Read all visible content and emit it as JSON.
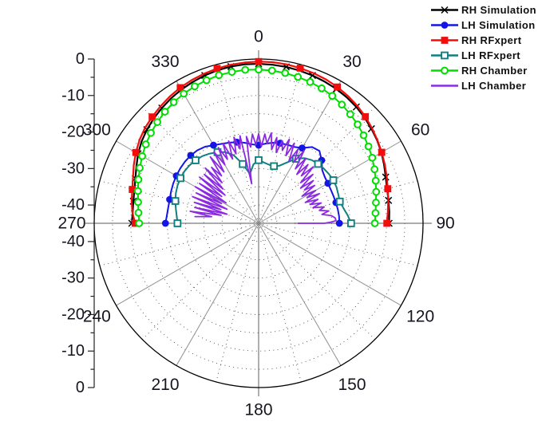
{
  "chart_data": {
    "type": "polar-line",
    "title": "",
    "legend_position": "top-right",
    "grid": {
      "angle_labels": [
        "0",
        "30",
        "60",
        "90",
        "120",
        "150",
        "180",
        "210",
        "240",
        "270",
        "300",
        "330"
      ],
      "angle_major_step_deg": 30,
      "angle_minor_step_deg": 15,
      "radial_tick_labels": [
        "0",
        "-10",
        "-20",
        "-30",
        "-40"
      ],
      "radial_axis_values": [
        0,
        -10,
        -20,
        -30,
        -40
      ],
      "radial_min_db": -45,
      "radial_max_db": 0,
      "radial_minor_step_db": 5,
      "zero_angle_position": "top",
      "angle_direction": "clockwise"
    },
    "series": [
      {
        "name": "RH Simulation",
        "color": "#000000",
        "marker": "x",
        "marker_every": 2,
        "line_width": 2.2,
        "az_start": -90,
        "az_step": 5,
        "values_db": [
          -10.3,
          -10.4,
          -10.2,
          -9.8,
          -9.1,
          -8.1,
          -6.9,
          -5.9,
          -5.1,
          -4.4,
          -3.8,
          -3.2,
          -2.7,
          -2.3,
          -1.9,
          -1.6,
          -1.4,
          -1.3,
          -1.3,
          -1.4,
          -1.5,
          -1.7,
          -1.9,
          -2.2,
          -2.5,
          -2.9,
          -3.4,
          -4.0,
          -4.7,
          -5.4,
          -6.2,
          -7.1,
          -8.0,
          -8.6,
          -8.9,
          -9.1,
          -9.3
        ]
      },
      {
        "name": "LH Simulation",
        "color": "#1414e6",
        "marker": "circle-filled",
        "marker_every": 3,
        "line_width": 2,
        "az_start": -90,
        "az_step": 5,
        "values_db": [
          -19.5,
          -19.8,
          -19.9,
          -19.8,
          -19.5,
          -19.2,
          -19.0,
          -18.8,
          -18.7,
          -18.7,
          -18.9,
          -19.4,
          -20.3,
          -21.0,
          -21.5,
          -22.0,
          -22.6,
          -23.3,
          -23.6,
          -23.1,
          -22.6,
          -22.3,
          -22.1,
          -21.9,
          -21.2,
          -19.5,
          -19.1,
          -20.6,
          -22.3,
          -22.9,
          -23.1,
          -23.2,
          -23.2,
          -23.1,
          -23.0,
          -22.9,
          -22.9
        ]
      },
      {
        "name": "RH RFxpert",
        "color": "#f20d0d",
        "marker": "square-filled",
        "marker_every": 3,
        "line_width": 2.2,
        "az_start": -90,
        "az_step": 5,
        "values_db": [
          -11.2,
          -10.3,
          -9.7,
          -9.2,
          -8.4,
          -7.3,
          -6.2,
          -5.2,
          -4.4,
          -3.8,
          -3.2,
          -2.6,
          -2.1,
          -1.7,
          -1.4,
          -1.1,
          -0.9,
          -0.8,
          -0.7,
          -0.7,
          -0.8,
          -1.0,
          -1.2,
          -1.5,
          -1.9,
          -2.4,
          -3.0,
          -3.7,
          -4.5,
          -5.3,
          -6.1,
          -6.9,
          -7.7,
          -8.4,
          -9.0,
          -9.5,
          -9.9
        ]
      },
      {
        "name": "LH RFxpert",
        "color": "#0f7f7f",
        "marker": "square-open",
        "marker_every": 3,
        "line_width": 2,
        "az_start": -90,
        "az_step": 5,
        "values_db": [
          -22.8,
          -22.5,
          -22.0,
          -21.4,
          -20.9,
          -20.5,
          -20.3,
          -20.2,
          -20.3,
          -20.6,
          -21.0,
          -21.7,
          -22.5,
          -23.5,
          -25.2,
          -28.2,
          -31.3,
          -28.8,
          -27.7,
          -28.3,
          -28.7,
          -28.8,
          -28.2,
          -26.6,
          -24.6,
          -23.2,
          -22.4,
          -22.0,
          -21.7,
          -21.5,
          -21.4,
          -21.5,
          -21.8,
          -22.0,
          -21.4,
          -20.5,
          -19.7
        ]
      },
      {
        "name": "RH Chamber",
        "color": "#00dd00",
        "marker": "circle-open",
        "marker_every": 1,
        "line_width": 2,
        "az_start": -90,
        "az_step": 5,
        "values_db": [
          -12.3,
          -12.0,
          -11.5,
          -10.8,
          -10.0,
          -9.1,
          -8.2,
          -7.3,
          -6.5,
          -5.8,
          -5.1,
          -4.5,
          -4.0,
          -3.6,
          -3.3,
          -3.0,
          -2.9,
          -2.8,
          -2.9,
          -3.0,
          -3.2,
          -3.5,
          -3.8,
          -4.2,
          -4.7,
          -5.3,
          -6.0,
          -6.7,
          -7.5,
          -8.3,
          -9.1,
          -10.0,
          -10.9,
          -11.7,
          -12.4,
          -12.9,
          -13.2
        ]
      },
      {
        "name": "LH Chamber",
        "color": "#8a2be2",
        "marker": "none",
        "marker_every": 0,
        "line_width": 1.8,
        "points_az_db": [
          [
            -84,
            -27.5
          ],
          [
            -82,
            -32
          ],
          [
            -80,
            -26
          ],
          [
            -78,
            -34.5
          ],
          [
            -76,
            -27
          ],
          [
            -74,
            -36
          ],
          [
            -72,
            -26.5
          ],
          [
            -70,
            -34
          ],
          [
            -68,
            -25.5
          ],
          [
            -66,
            -35.5
          ],
          [
            -64,
            -26
          ],
          [
            -62,
            -33.5
          ],
          [
            -60,
            -25
          ],
          [
            -58,
            -34.5
          ],
          [
            -56,
            -25.5
          ],
          [
            -54,
            -32.5
          ],
          [
            -52,
            -24.5
          ],
          [
            -50,
            -33
          ],
          [
            -48,
            -25
          ],
          [
            -46,
            -31.5
          ],
          [
            -44,
            -24
          ],
          [
            -42,
            -30
          ],
          [
            -40,
            -25
          ],
          [
            -38,
            -28.5
          ],
          [
            -36,
            -22.5
          ],
          [
            -34,
            -28
          ],
          [
            -32,
            -22
          ],
          [
            -30,
            -26.5
          ],
          [
            -28,
            -21.5
          ],
          [
            -26,
            -25.5
          ],
          [
            -24,
            -21
          ],
          [
            -22,
            -26
          ],
          [
            -20,
            -21
          ],
          [
            -18,
            -25
          ],
          [
            -16,
            -20.5
          ],
          [
            -14,
            -24
          ],
          [
            -12,
            -20.5
          ],
          [
            -10,
            -34
          ],
          [
            -8,
            -21
          ],
          [
            -6,
            -24
          ],
          [
            -4,
            -20.5
          ],
          [
            -2,
            -23.5
          ],
          [
            0,
            -20.5
          ],
          [
            2,
            -24
          ],
          [
            4,
            -20.5
          ],
          [
            6,
            -23
          ],
          [
            8,
            -20
          ],
          [
            10,
            -24.5
          ],
          [
            12,
            -21
          ],
          [
            14,
            -25
          ],
          [
            16,
            -21.5
          ],
          [
            18,
            -24
          ],
          [
            20,
            -20.5
          ],
          [
            22,
            -25
          ],
          [
            24,
            -21
          ],
          [
            26,
            -26
          ],
          [
            28,
            -22
          ],
          [
            30,
            -25.5
          ],
          [
            32,
            -21.5
          ],
          [
            34,
            -27
          ],
          [
            36,
            -23
          ],
          [
            38,
            -28
          ],
          [
            40,
            -24
          ],
          [
            42,
            -27.5
          ],
          [
            44,
            -23.5
          ],
          [
            46,
            -29
          ],
          [
            48,
            -25
          ],
          [
            50,
            -30
          ],
          [
            52,
            -26
          ],
          [
            54,
            -29.5
          ],
          [
            56,
            -26.5
          ],
          [
            58,
            -31
          ],
          [
            60,
            -27
          ],
          [
            62,
            -30
          ],
          [
            64,
            -26.5
          ],
          [
            66,
            -31
          ],
          [
            68,
            -27.5
          ],
          [
            70,
            -30
          ],
          [
            72,
            -27
          ],
          [
            74,
            -29.5
          ],
          [
            76,
            -26.5
          ],
          [
            78,
            -28
          ],
          [
            80,
            -25.5
          ],
          [
            82,
            -27.5
          ],
          [
            84,
            -25
          ],
          [
            86,
            -24
          ],
          [
            88,
            -23.8
          ],
          [
            89,
            -25
          ],
          [
            90,
            -27
          ],
          [
            90,
            -29.5
          ],
          [
            90,
            -32
          ],
          [
            90,
            -34.2
          ]
        ]
      }
    ],
    "colors": {
      "outer_circle": "#000000",
      "major_radial_line": "#8f8f8f",
      "main_axis_line": "#7a7a7a",
      "dotted_grid": "#4a4a4a",
      "tick_label": "#15151f",
      "legend_text": "#101010",
      "background": "#ffffff"
    }
  }
}
